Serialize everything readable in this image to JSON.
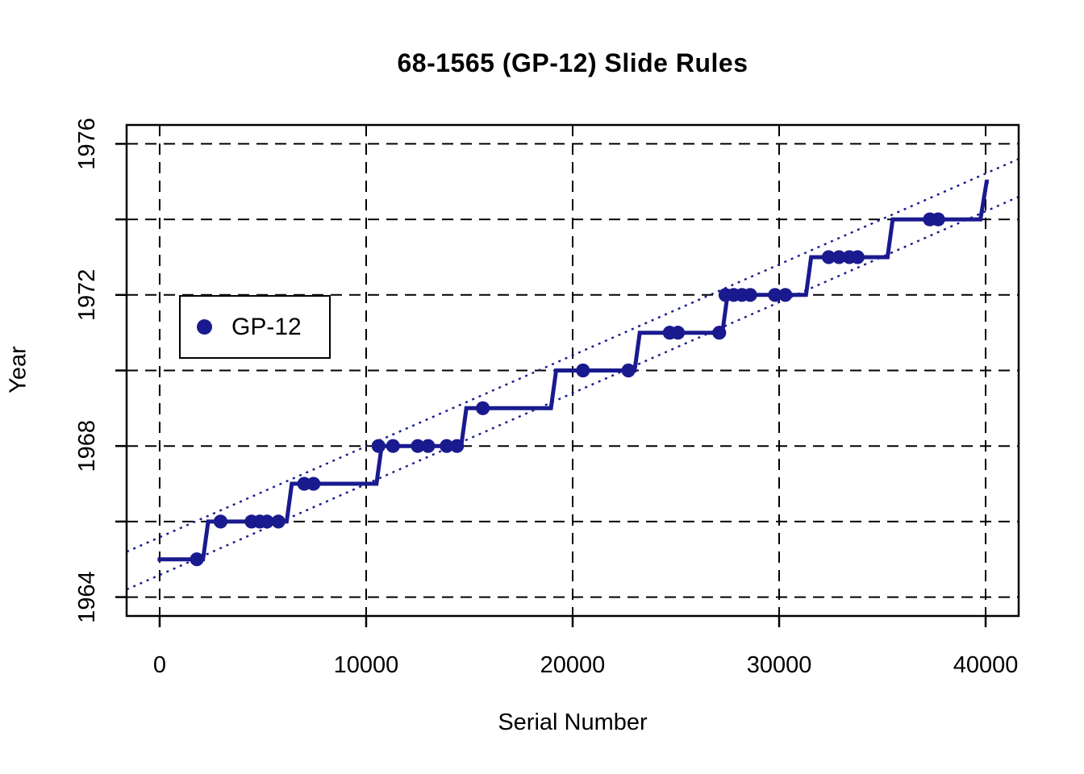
{
  "page": {
    "title": "68-1565 (GP-12) Slide Rules",
    "x_axis_label": "Serial Number",
    "y_axis_label": "Year"
  },
  "legend": {
    "label": "GP-12",
    "marker_color": "#1a1a8f",
    "position": "upper left inside plot"
  },
  "colors": {
    "series": "#1a1a8f",
    "grid": "#000000",
    "axis": "#000000",
    "text": "#000000",
    "background": "#ffffff"
  },
  "chart_data": {
    "type": "scatter",
    "title": "68-1565 (GP-12) Slide Rules",
    "xlabel": "Serial Number",
    "ylabel": "Year",
    "xlim": [
      -1600,
      41600
    ],
    "ylim": [
      1963.5,
      1976.5
    ],
    "x_ticks": [
      0,
      10000,
      20000,
      30000,
      40000
    ],
    "y_ticks": [
      1964,
      1966,
      1968,
      1970,
      1972,
      1974,
      1976
    ],
    "y_ticks_labeled": [
      1964,
      1968,
      1972,
      1976
    ],
    "grid": "dashed gridlines at all x and y ticks",
    "legend_position": "upper-left",
    "series": [
      {
        "name": "GP-12",
        "type": "scatter",
        "color": "#1a1a8f",
        "points": [
          [
            1800,
            1965
          ],
          [
            2950,
            1966
          ],
          [
            4450,
            1966
          ],
          [
            4850,
            1966
          ],
          [
            5200,
            1966
          ],
          [
            5750,
            1966
          ],
          [
            7000,
            1967
          ],
          [
            7450,
            1967
          ],
          [
            10600,
            1968
          ],
          [
            11300,
            1968
          ],
          [
            12500,
            1968
          ],
          [
            13000,
            1968
          ],
          [
            13900,
            1968
          ],
          [
            14400,
            1968
          ],
          [
            15650,
            1969
          ],
          [
            20500,
            1970
          ],
          [
            22700,
            1970
          ],
          [
            24700,
            1971
          ],
          [
            25100,
            1971
          ],
          [
            27100,
            1971
          ],
          [
            27400,
            1972
          ],
          [
            27800,
            1972
          ],
          [
            28200,
            1972
          ],
          [
            28600,
            1972
          ],
          [
            29800,
            1972
          ],
          [
            30300,
            1972
          ],
          [
            32400,
            1973
          ],
          [
            32900,
            1973
          ],
          [
            33400,
            1973
          ],
          [
            33800,
            1973
          ],
          [
            37300,
            1974
          ],
          [
            37700,
            1974
          ]
        ]
      },
      {
        "name": "step-fit-line",
        "type": "step-line",
        "color": "#1a1a8f",
        "vertices": [
          [
            -100,
            1965
          ],
          [
            2100,
            1965
          ],
          [
            2350,
            1966
          ],
          [
            6150,
            1966
          ],
          [
            6400,
            1967
          ],
          [
            10500,
            1967
          ],
          [
            10750,
            1968
          ],
          [
            14600,
            1968
          ],
          [
            14850,
            1969
          ],
          [
            18950,
            1969
          ],
          [
            19200,
            1970
          ],
          [
            23000,
            1970
          ],
          [
            23250,
            1971
          ],
          [
            27250,
            1971
          ],
          [
            27500,
            1972
          ],
          [
            31300,
            1972
          ],
          [
            31550,
            1973
          ],
          [
            35250,
            1973
          ],
          [
            35500,
            1974
          ],
          [
            39750,
            1974
          ],
          [
            40050,
            1975
          ],
          [
            40150,
            1975
          ]
        ]
      },
      {
        "name": "upper-estimate-line",
        "type": "dotted-line",
        "color": "#1a1a8f",
        "points": [
          [
            -1600,
            1965.2
          ],
          [
            41600,
            1975.6
          ]
        ]
      },
      {
        "name": "lower-estimate-line",
        "type": "dotted-line",
        "color": "#1a1a8f",
        "points": [
          [
            -1600,
            1964.2
          ],
          [
            41600,
            1974.6
          ]
        ]
      }
    ]
  }
}
